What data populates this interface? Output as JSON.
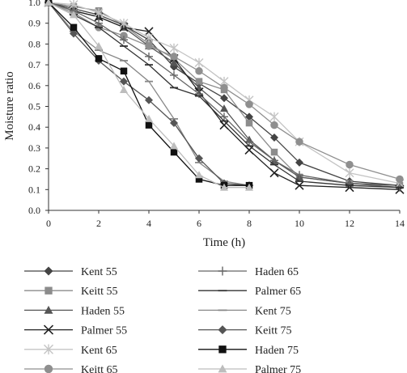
{
  "chart_data": {
    "type": "line",
    "title": "",
    "xlabel": "Time (h)",
    "ylabel": "Moisture ratio",
    "xlim": [
      0,
      14
    ],
    "ylim": [
      0,
      1.0
    ],
    "x_ticks": [
      "0",
      "2",
      "4",
      "6",
      "8",
      "10",
      "12",
      "14"
    ],
    "y_ticks": [
      "0.0",
      "0.1",
      "0.2",
      "0.3",
      "0.4",
      "0.5",
      "0.6",
      "0.7",
      "0.8",
      "0.9",
      "1.0"
    ],
    "grid": false,
    "legend_position": "bottom",
    "series": [
      {
        "name": "Kent 55",
        "color": "#444444",
        "marker": "diamond",
        "x": [
          0,
          1,
          2,
          3,
          4,
          5,
          6,
          7,
          8,
          9,
          10,
          12,
          14
        ],
        "y": [
          1.0,
          0.97,
          0.94,
          0.89,
          0.82,
          0.69,
          0.61,
          0.54,
          0.45,
          0.35,
          0.23,
          0.14,
          0.12
        ]
      },
      {
        "name": "Keitt 55",
        "color": "#8c8c8c",
        "marker": "square",
        "x": [
          0,
          1,
          2,
          3,
          4,
          5,
          6,
          7,
          8,
          9,
          10,
          12,
          14
        ],
        "y": [
          1.0,
          0.98,
          0.96,
          0.89,
          0.8,
          0.73,
          0.62,
          0.58,
          0.42,
          0.28,
          0.16,
          0.13,
          0.12
        ]
      },
      {
        "name": "Haden 55",
        "color": "#555555",
        "marker": "triangle",
        "x": [
          0,
          1,
          2,
          3,
          4,
          5,
          6,
          7,
          8,
          9,
          10,
          12,
          14
        ],
        "y": [
          1.0,
          0.96,
          0.93,
          0.88,
          0.79,
          0.71,
          0.59,
          0.49,
          0.34,
          0.24,
          0.16,
          0.13,
          0.12
        ]
      },
      {
        "name": "Palmer 55",
        "color": "#222222",
        "marker": "x",
        "x": [
          0,
          1,
          2,
          3,
          4,
          5,
          6,
          7,
          8,
          9,
          10,
          12,
          14
        ],
        "y": [
          1.0,
          0.96,
          0.93,
          0.88,
          0.86,
          0.73,
          0.57,
          0.41,
          0.29,
          0.18,
          0.12,
          0.11,
          0.1
        ]
      },
      {
        "name": "Kent 65",
        "color": "#c4c4c4",
        "marker": "star",
        "x": [
          0,
          1,
          2,
          3,
          4,
          5,
          6,
          7,
          8,
          9,
          10,
          12,
          14
        ],
        "y": [
          1.0,
          0.99,
          0.95,
          0.9,
          0.83,
          0.78,
          0.71,
          0.62,
          0.53,
          0.45,
          0.33,
          0.18,
          0.13
        ]
      },
      {
        "name": "Keitt 65",
        "color": "#8f8f8f",
        "marker": "circle",
        "x": [
          0,
          1,
          2,
          3,
          4,
          5,
          6,
          7,
          8,
          9,
          10,
          12,
          14
        ],
        "y": [
          1.0,
          0.95,
          0.88,
          0.84,
          0.79,
          0.74,
          0.67,
          0.59,
          0.51,
          0.41,
          0.33,
          0.22,
          0.15
        ]
      },
      {
        "name": "Haden 65",
        "color": "#666666",
        "marker": "plus",
        "x": [
          0,
          1,
          2,
          3,
          4,
          5,
          6,
          7,
          8,
          9,
          10,
          12,
          14
        ],
        "y": [
          1.0,
          0.96,
          0.9,
          0.82,
          0.74,
          0.65,
          0.56,
          0.45,
          0.33,
          0.24,
          0.17,
          0.13,
          0.11
        ]
      },
      {
        "name": "Palmer 65",
        "color": "#333333",
        "marker": "dash",
        "x": [
          0,
          1,
          2,
          3,
          4,
          5,
          6,
          7,
          8,
          9,
          10,
          12,
          14
        ],
        "y": [
          1.0,
          0.94,
          0.88,
          0.79,
          0.7,
          0.59,
          0.55,
          0.43,
          0.31,
          0.22,
          0.14,
          0.12,
          0.11
        ]
      },
      {
        "name": "Kent 75",
        "color": "#888888",
        "marker": "dash",
        "x": [
          0,
          1,
          2,
          3,
          4,
          5,
          6,
          7,
          8
        ],
        "y": [
          1.0,
          0.86,
          0.77,
          0.72,
          0.62,
          0.44,
          0.23,
          0.14,
          0.12
        ]
      },
      {
        "name": "Keitt 75",
        "color": "#555555",
        "marker": "diamond",
        "x": [
          0,
          1,
          2,
          3,
          4,
          5,
          6,
          7,
          8
        ],
        "y": [
          1.0,
          0.85,
          0.72,
          0.62,
          0.53,
          0.42,
          0.25,
          0.13,
          0.12
        ]
      },
      {
        "name": "Haden 75",
        "color": "#111111",
        "marker": "square",
        "x": [
          0,
          1,
          2,
          3,
          4,
          5,
          6,
          7,
          8
        ],
        "y": [
          1.0,
          0.88,
          0.73,
          0.67,
          0.41,
          0.28,
          0.15,
          0.12,
          0.12
        ]
      },
      {
        "name": "Palmer 75",
        "color": "#bdbdbd",
        "marker": "triangle",
        "x": [
          0,
          1,
          2,
          3,
          4,
          5,
          6,
          7,
          8
        ],
        "y": [
          1.0,
          0.94,
          0.79,
          0.58,
          0.44,
          0.31,
          0.17,
          0.11,
          0.11
        ]
      }
    ]
  }
}
